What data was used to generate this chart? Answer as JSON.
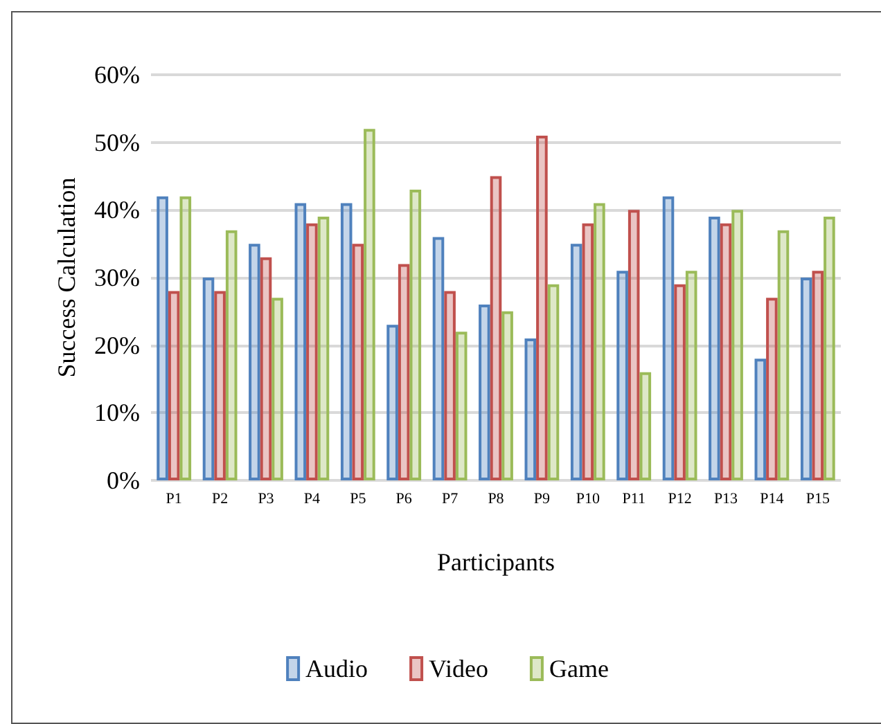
{
  "chart_data": {
    "type": "bar",
    "xlabel": "Participants",
    "ylabel": "Success Calculation",
    "categories": [
      "P1",
      "P2",
      "P3",
      "P4",
      "P5",
      "P6",
      "P7",
      "P8",
      "P9",
      "P10",
      "P11",
      "P12",
      "P13",
      "P14",
      "P15"
    ],
    "series": [
      {
        "name": "Audio",
        "color": "#4f81bd",
        "values": [
          42,
          30,
          35,
          41,
          41,
          23,
          36,
          26,
          21,
          35,
          31,
          42,
          39,
          18,
          30
        ]
      },
      {
        "name": "Video",
        "color": "#c0504d",
        "values": [
          28,
          28,
          33,
          38,
          35,
          32,
          28,
          45,
          51,
          38,
          40,
          29,
          38,
          27,
          31
        ]
      },
      {
        "name": "Game",
        "color": "#9bbb59",
        "values": [
          42,
          37,
          27,
          39,
          52,
          43,
          22,
          25,
          29,
          41,
          16,
          31,
          40,
          37,
          39
        ]
      }
    ],
    "ylim": [
      0,
      60
    ],
    "yticks": [
      {
        "value": 0,
        "label": "0%"
      },
      {
        "value": 10,
        "label": "10%"
      },
      {
        "value": 20,
        "label": "20%"
      },
      {
        "value": 30,
        "label": "30%"
      },
      {
        "value": 40,
        "label": "40%"
      },
      {
        "value": 50,
        "label": "50%"
      },
      {
        "value": 60,
        "label": "60%"
      }
    ],
    "grid": "y",
    "legend": "bottom"
  }
}
